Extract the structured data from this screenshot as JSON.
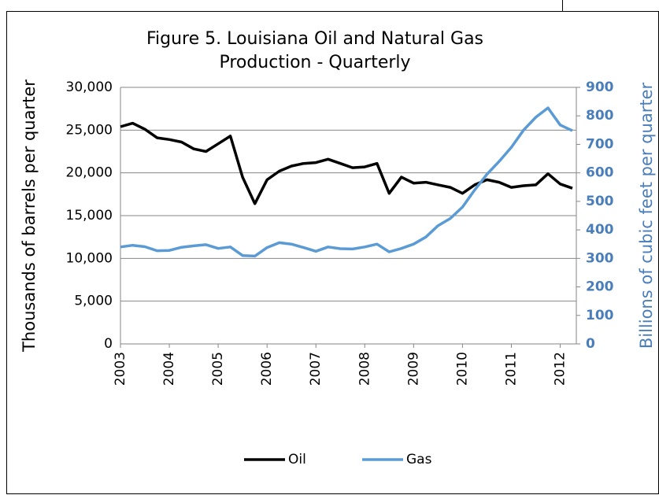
{
  "chart_data": {
    "type": "line",
    "title": [
      "Figure 5. Louisiana Oil and Natural Gas",
      "Production - Quarterly"
    ],
    "y_label": "Thousands of barrels per quarter",
    "y2_label": "Billions of cubic feet per quarter",
    "x": [
      2003,
      2003.25,
      2003.5,
      2003.75,
      2004,
      2004.25,
      2004.5,
      2004.75,
      2005,
      2005.25,
      2005.5,
      2005.75,
      2006,
      2006.25,
      2006.5,
      2006.75,
      2007,
      2007.25,
      2007.5,
      2007.75,
      2008,
      2008.25,
      2008.5,
      2008.75,
      2009,
      2009.25,
      2009.5,
      2009.75,
      2010,
      2010.25,
      2010.5,
      2010.75,
      2011,
      2011.25,
      2011.5,
      2011.75,
      2012,
      2012.25
    ],
    "xlim": [
      2003,
      2012.33
    ],
    "xticks": [
      2003,
      2004,
      2005,
      2006,
      2007,
      2008,
      2009,
      2010,
      2011,
      2012
    ],
    "ylim": [
      0,
      30000
    ],
    "yticks": [
      0,
      {
        "value": 5000,
        "label": "5,000"
      },
      {
        "value": 10000,
        "label": "10,000"
      },
      {
        "value": 15000,
        "label": "15,000"
      },
      {
        "value": 20000,
        "label": "20,000"
      },
      {
        "value": 25000,
        "label": "25,000"
      },
      {
        "value": 30000,
        "label": "30,000"
      }
    ],
    "y2lim": [
      0,
      900
    ],
    "y2ticks": [
      0,
      100,
      200,
      300,
      400,
      500,
      600,
      700,
      800,
      900
    ],
    "grid": true,
    "legend": "bottom",
    "series": [
      {
        "name": "Oil",
        "color": "#000000",
        "values": [
          25400,
          25800,
          25100,
          24100,
          23900,
          23600,
          22800,
          22500,
          23400,
          24300,
          19500,
          16400,
          19200,
          20200,
          20800,
          21100,
          21200,
          21600,
          21100,
          20600,
          20700,
          21100,
          17600,
          19500,
          18800,
          18900,
          18600,
          18300,
          17600,
          18600,
          19200,
          18900,
          18300,
          18500,
          18600,
          19900,
          18700,
          18200
        ]
      },
      {
        "name": "Gas",
        "color": "#5b9bd5",
        "axis": "y2",
        "values": [
          340,
          346,
          341,
          327,
          328,
          339,
          344,
          348,
          335,
          340,
          310,
          308,
          338,
          355,
          350,
          338,
          325,
          340,
          334,
          333,
          340,
          350,
          323,
          335,
          350,
          375,
          415,
          440,
          480,
          540,
          595,
          640,
          690,
          750,
          795,
          828,
          768,
          748
        ]
      }
    ]
  }
}
